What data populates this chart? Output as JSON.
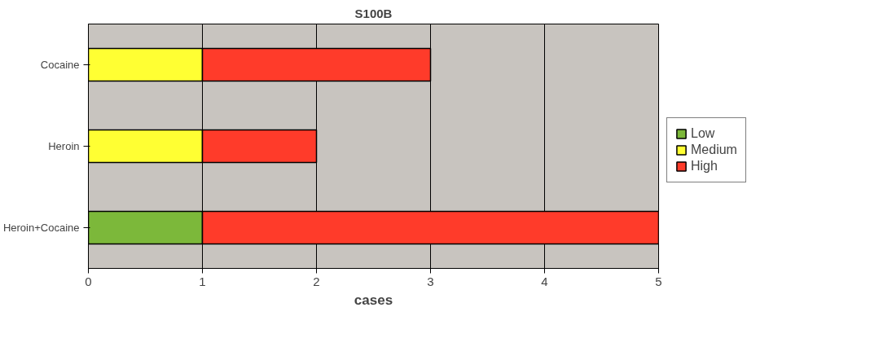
{
  "chart_data": {
    "type": "bar",
    "orientation": "horizontal",
    "stacked": true,
    "title": "S100B",
    "xlabel": "cases",
    "categories": [
      "Cocaine",
      "Heroin",
      "Heroin+Cocaine"
    ],
    "series": [
      {
        "name": "Low",
        "color": "#7cb83a",
        "values": [
          null,
          null,
          1
        ]
      },
      {
        "name": "Medium",
        "color": "#ffff33",
        "values": [
          1,
          1,
          null
        ]
      },
      {
        "name": "High",
        "color": "#ff3b2a",
        "values": [
          2,
          1,
          4
        ]
      }
    ],
    "xlim": [
      0,
      5
    ],
    "xticks": [
      0,
      1,
      2,
      3,
      4,
      5
    ],
    "grid": "x",
    "legend": "right"
  }
}
